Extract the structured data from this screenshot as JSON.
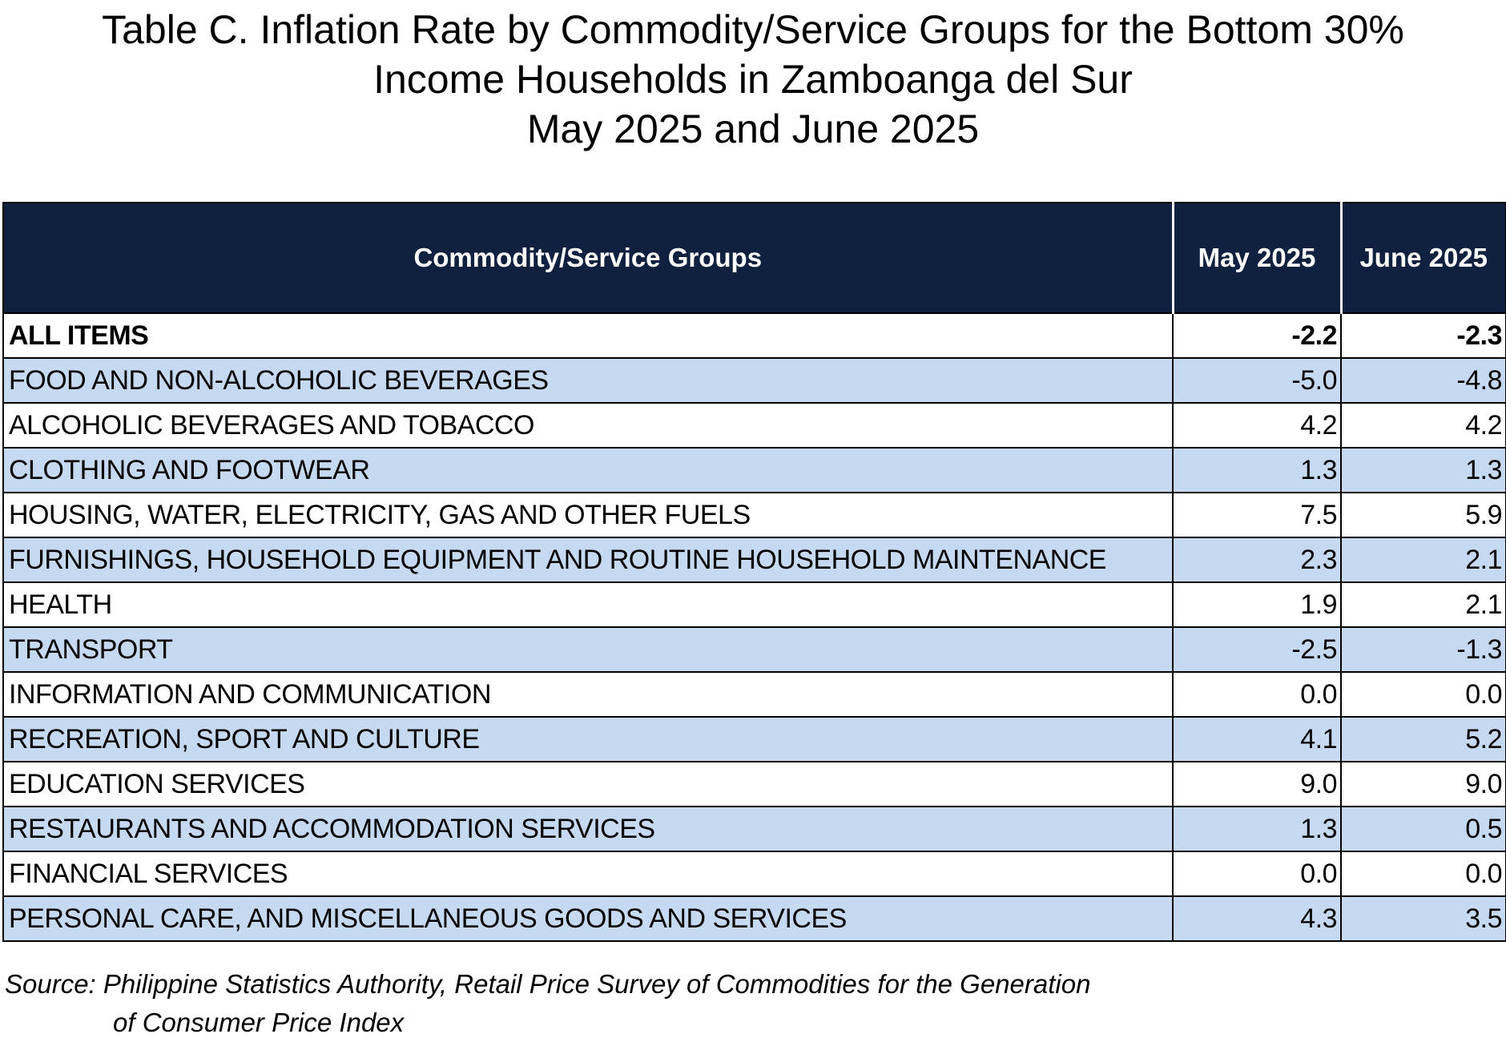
{
  "title": {
    "line1": "Table C. Inflation Rate by Commodity/Service Groups for the Bottom 30%",
    "line2": "Income Households in Zamboanga del Sur",
    "line3": "May 2025 and June 2025"
  },
  "table": {
    "headers": {
      "group": "Commodity/Service Groups",
      "may": "May 2025",
      "june": "June 2025"
    },
    "rows": [
      {
        "group": "ALL ITEMS",
        "may": "-2.2",
        "june": "-2.3"
      },
      {
        "group": "FOOD AND NON-ALCOHOLIC BEVERAGES",
        "may": "-5.0",
        "june": "-4.8"
      },
      {
        "group": "ALCOHOLIC BEVERAGES AND TOBACCO",
        "may": "4.2",
        "june": "4.2"
      },
      {
        "group": "CLOTHING AND FOOTWEAR",
        "may": "1.3",
        "june": "1.3"
      },
      {
        "group": "HOUSING, WATER, ELECTRICITY, GAS AND OTHER FUELS",
        "may": "7.5",
        "june": "5.9"
      },
      {
        "group": "FURNISHINGS, HOUSEHOLD EQUIPMENT AND ROUTINE HOUSEHOLD MAINTENANCE",
        "may": "2.3",
        "june": "2.1"
      },
      {
        "group": "HEALTH",
        "may": "1.9",
        "june": "2.1"
      },
      {
        "group": "TRANSPORT",
        "may": "-2.5",
        "june": "-1.3"
      },
      {
        "group": "INFORMATION AND COMMUNICATION",
        "may": "0.0",
        "june": "0.0"
      },
      {
        "group": "RECREATION, SPORT AND CULTURE",
        "may": "4.1",
        "june": "5.2"
      },
      {
        "group": "EDUCATION SERVICES",
        "may": "9.0",
        "june": "9.0"
      },
      {
        "group": "RESTAURANTS AND ACCOMMODATION SERVICES",
        "may": "1.3",
        "june": "0.5"
      },
      {
        "group": "FINANCIAL SERVICES",
        "may": "0.0",
        "june": "0.0"
      },
      {
        "group": "PERSONAL CARE, AND MISCELLANEOUS GOODS AND SERVICES",
        "may": "4.3",
        "june": "3.5"
      }
    ]
  },
  "source": {
    "line1": "Source: Philippine Statistics Authority, Retail Price Survey of Commodities for the Generation",
    "line2": "of Consumer Price Index"
  },
  "colors": {
    "header_bg": "#0f213f",
    "header_text": "#ffffff",
    "shaded_row": "#c5d9f1",
    "plain_row": "#ffffff"
  }
}
